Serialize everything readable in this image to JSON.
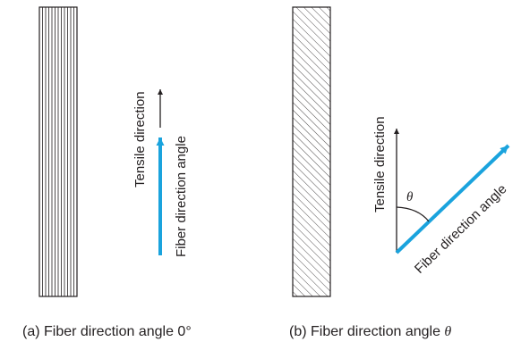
{
  "panel_a": {
    "tensile_label": "Tensile direction",
    "fiber_label": "Fiber direction angle",
    "caption": "(a) Fiber direction angle 0°"
  },
  "panel_b": {
    "tensile_label": "Tensile direction",
    "fiber_label": "Fiber direction angle",
    "angle_symbol": "θ",
    "caption_prefix": "(b) Fiber direction angle ",
    "caption_symbol": "θ"
  },
  "colors": {
    "fiber_arrow": "#1aa3dd",
    "line": "#231f20"
  }
}
